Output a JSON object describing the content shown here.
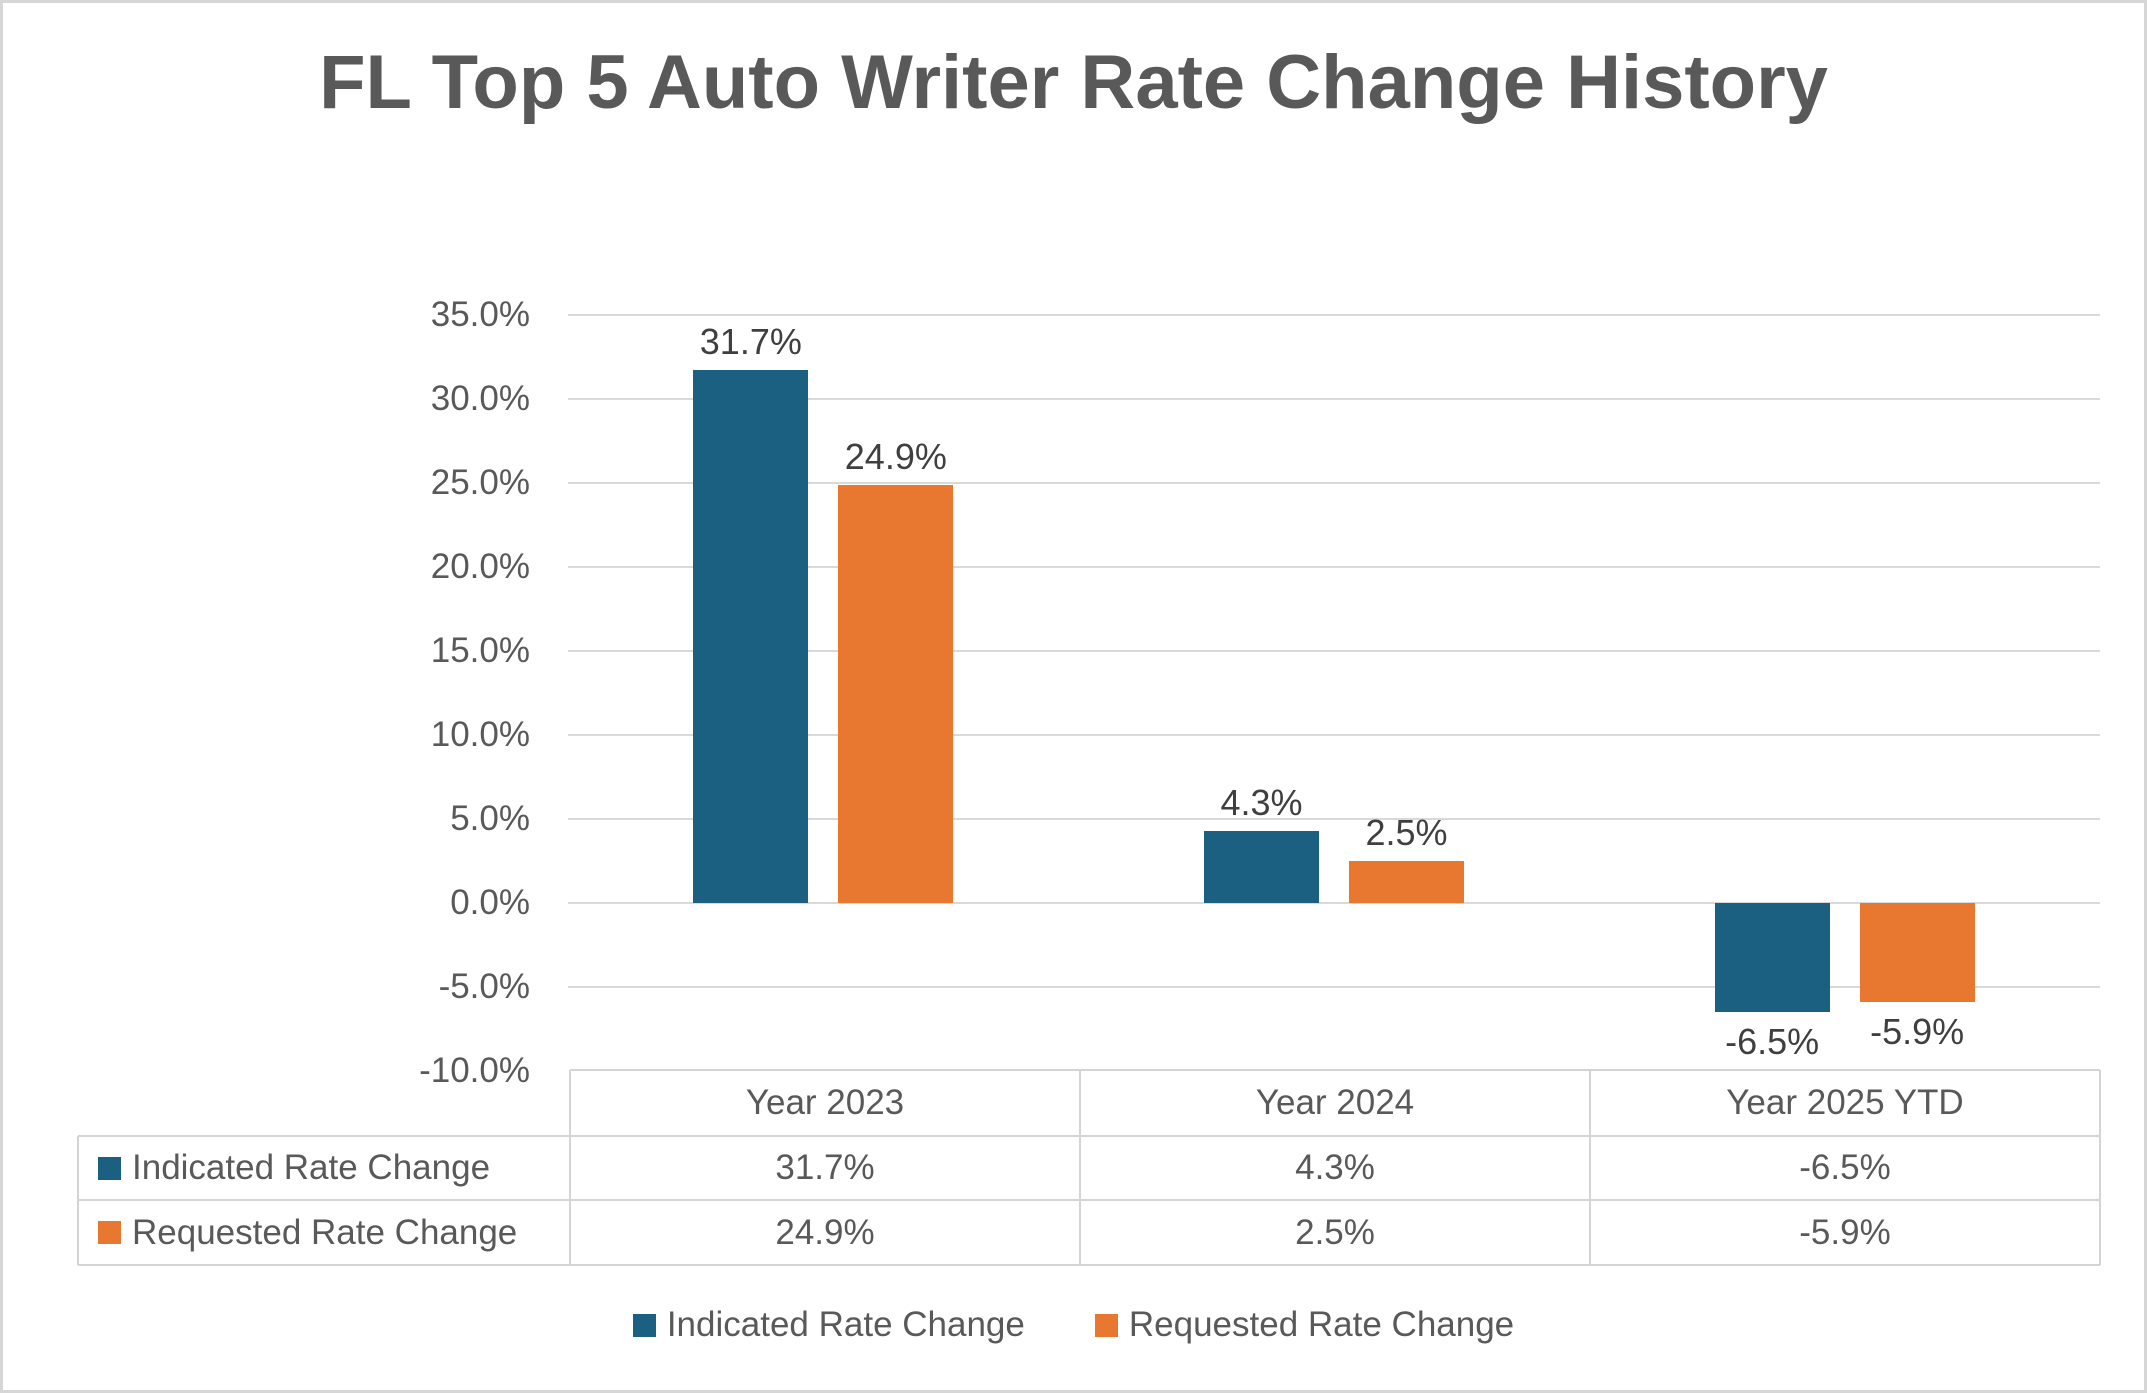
{
  "title": "FL Top 5 Auto Writer Rate Change History",
  "colors": {
    "indicated": "#1B6080",
    "requested": "#E8772F",
    "text_gray": "#595959",
    "data_label": "#3F3F3F",
    "gridline": "#D9D9D9",
    "table_border": "#D4D4D4",
    "frame_border": "#D6D6D6"
  },
  "chart_data": {
    "type": "bar",
    "title": "FL Top 5 Auto Writer Rate Change History",
    "categories": [
      "Year 2023",
      "Year 2024",
      "Year 2025 YTD"
    ],
    "series": [
      {
        "name": "Indicated Rate Change",
        "color": "#1B6080",
        "values": [
          31.7,
          4.3,
          -6.5
        ],
        "labels": [
          "31.7%",
          "4.3%",
          "-6.5%"
        ]
      },
      {
        "name": "Requested Rate Change",
        "color": "#E8772F",
        "values": [
          24.9,
          2.5,
          -5.9
        ],
        "labels": [
          "24.9%",
          "2.5%",
          "-5.9%"
        ]
      }
    ],
    "xlabel": "",
    "ylabel": "",
    "ylim": [
      -10,
      35
    ],
    "y_tick_step": 5,
    "y_tick_labels": [
      "35.0%",
      "30.0%",
      "25.0%",
      "20.0%",
      "15.0%",
      "10.0%",
      "5.0%",
      "0.0%",
      "-5.0%",
      "-10.0%"
    ],
    "grid": true,
    "legend_position": "bottom",
    "data_table_shown": true
  }
}
